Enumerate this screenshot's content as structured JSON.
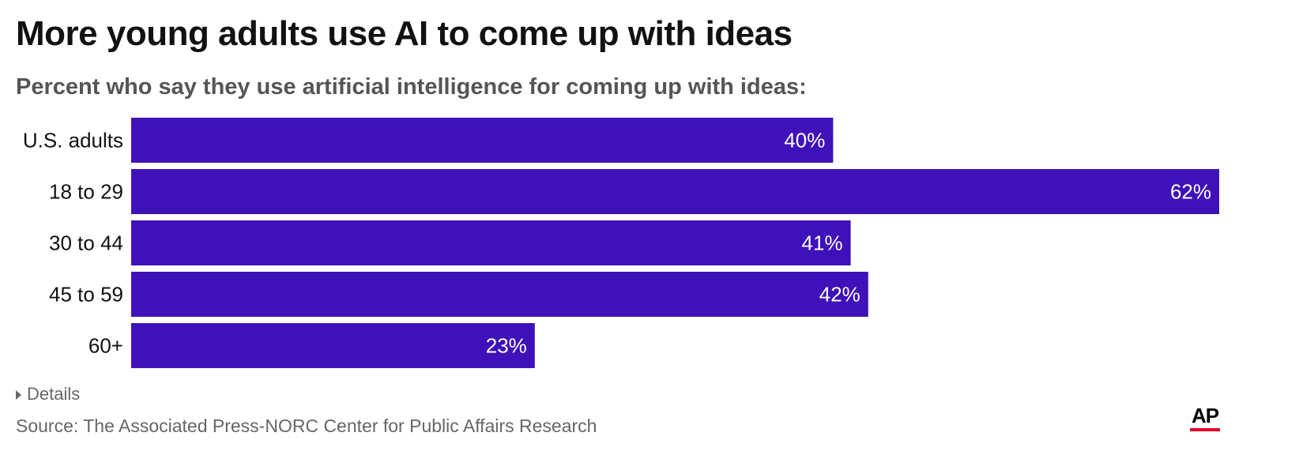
{
  "header": {
    "title": "More young adults use AI to come up with ideas",
    "subtitle": "Percent who say they use artificial intelligence for coming up with ideas:"
  },
  "chart_data": {
    "type": "bar",
    "orientation": "horizontal",
    "categories": [
      "U.S. adults",
      "18 to 29",
      "30 to 44",
      "45 to 59",
      "60+"
    ],
    "values": [
      40,
      62,
      41,
      42,
      23
    ],
    "value_labels": [
      "40%",
      "62%",
      "41%",
      "42%",
      "23%"
    ],
    "xlim": [
      0,
      62
    ],
    "grid": false,
    "bar_color": "#3e12b8",
    "label_color": "#ffffff"
  },
  "footer": {
    "details_label": "Details",
    "source": "Source: The Associated Press-NORC Center for Public Affairs Research",
    "logo_text": "AP",
    "logo_accent": "#e4002b"
  }
}
